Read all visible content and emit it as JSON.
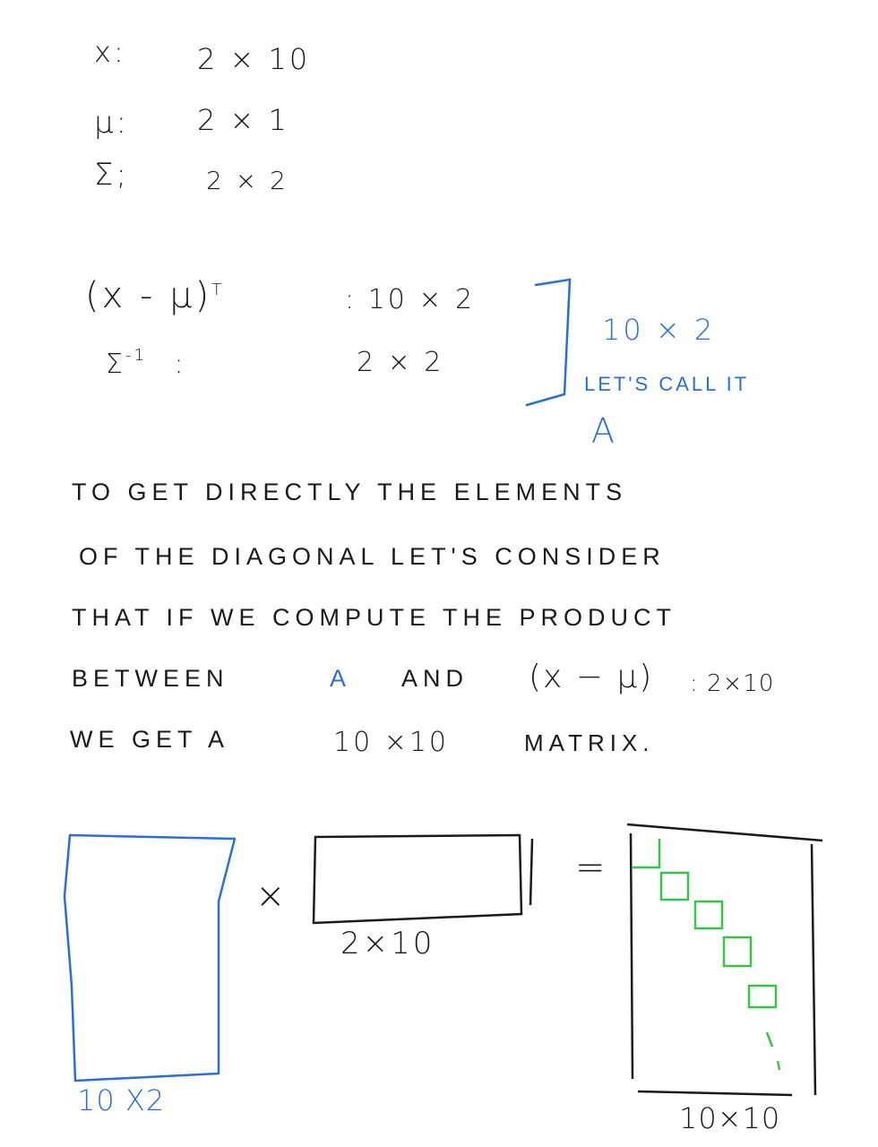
{
  "dims": {
    "x_sym": "x:",
    "x_val": "2 × 10",
    "mu_sym": "μ:",
    "mu_val": "2 × 1",
    "sigma_sym": "Σ;",
    "sigma_val": "2 × 2"
  },
  "product": {
    "line1_expr": "(x - μ)",
    "line1_sup": "T",
    "line1_dim": ": 10 × 2",
    "line2_expr": "Σ",
    "line2_sup": "-1",
    "line2_colon": ":",
    "line2_dim": "2 × 2",
    "result_dim": "10 × 2",
    "result_note": "LET'S CALL IT",
    "result_name": "A"
  },
  "explanation": {
    "line1": "TO GET DIRECTLY THE ELEMENTS",
    "line2": "OF THE DIAGONAL LET'S CONSIDER",
    "line3": "THAT IF WE COMPUTE THE PRODUCT",
    "line4_a": "BETWEEN",
    "line4_b": "A",
    "line4_c": "AND",
    "line4_d": "(x − μ)",
    "line4_e": ": 2×10",
    "line5_a": "WE GET A",
    "line5_b": "10 ×10",
    "line5_c": "MATRIX."
  },
  "diagram": {
    "left_label": "10 X2",
    "times": "×",
    "middle_label": "2×10",
    "equals": "=",
    "right_label": "10×10",
    "colors": {
      "blue": "#2b6fd6",
      "green": "#3cc24a",
      "ink": "#1a1a1a"
    }
  }
}
